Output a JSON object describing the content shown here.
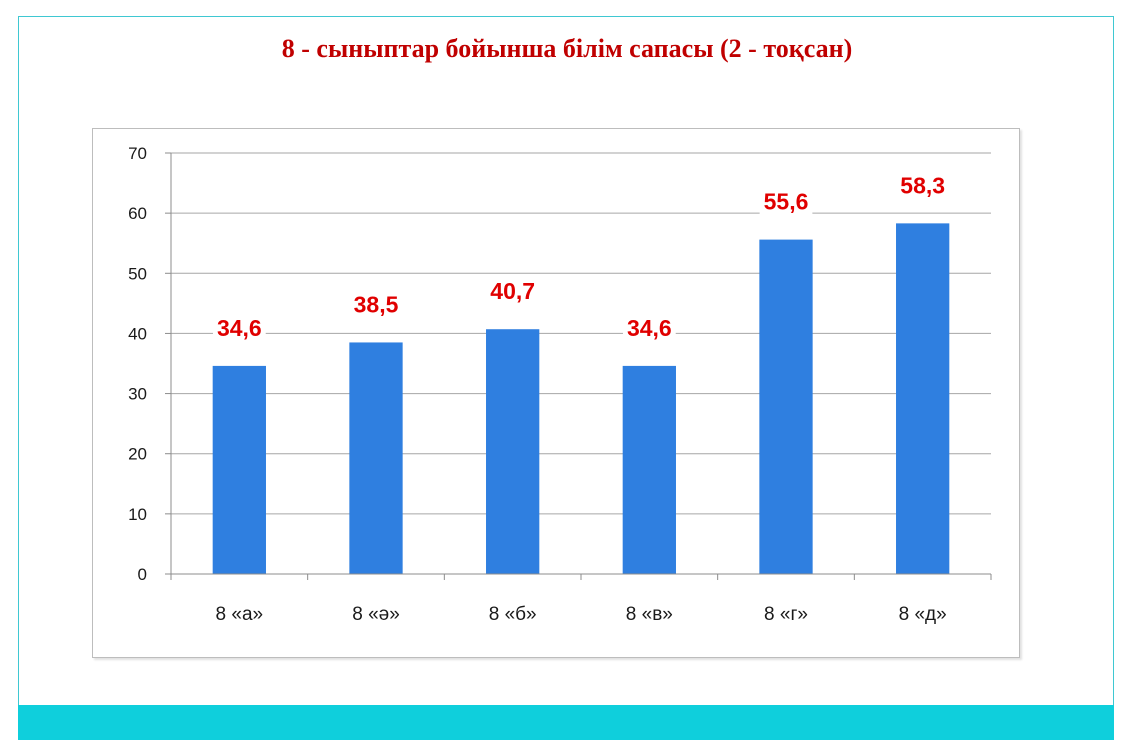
{
  "title": "8 - сыныптар бойынша білім сапасы (2 - тоқсан)",
  "colors": {
    "bar": "#2f7fe0",
    "label": "#e00000",
    "title": "#c00000",
    "band": "#0fcfdc"
  },
  "chart_data": {
    "type": "bar",
    "categories": [
      "8 «а»",
      "8 «ә»",
      "8 «б»",
      "8 «в»",
      "8 «г»",
      "8 «д»"
    ],
    "values": [
      34.6,
      38.5,
      40.7,
      34.6,
      55.6,
      58.3
    ],
    "data_labels": [
      "34,6",
      "38,5",
      "40,7",
      "34,6",
      "55,6",
      "58,3"
    ],
    "title": "8 - сыныптар бойынша білім сапасы (2 - тоқсан)",
    "xlabel": "",
    "ylabel": "",
    "ylim": [
      0,
      70
    ],
    "yticks": [
      0,
      10,
      20,
      30,
      40,
      50,
      60,
      70
    ],
    "grid": true,
    "legend": "none"
  }
}
